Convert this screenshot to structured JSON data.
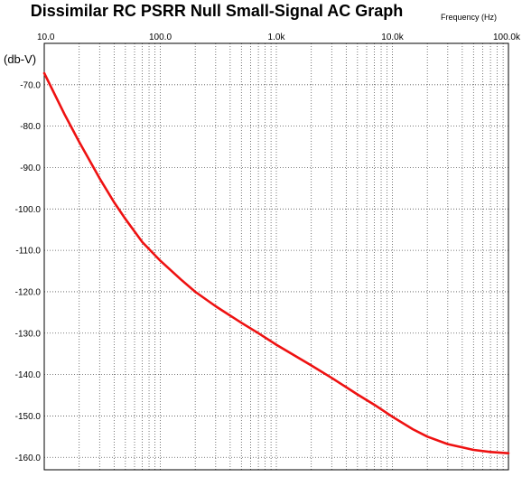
{
  "chart_data": {
    "type": "line",
    "title": "Dissimilar RC PSRR Null Small-Signal AC Graph",
    "xlabel": "Frequency   (Hz)",
    "ylabel": "(db-V)",
    "xscale": "log",
    "xlim": [
      10,
      100000
    ],
    "ylim": [
      -163,
      -60
    ],
    "grid": true,
    "xticks": [
      10,
      100,
      1000,
      10000,
      100000
    ],
    "xtick_labels": [
      "10.0",
      "100.0",
      "1.0k",
      "10.0k",
      "100.0k"
    ],
    "yticks": [
      -70,
      -80,
      -90,
      -100,
      -110,
      -120,
      -130,
      -140,
      -150,
      -160
    ],
    "ytick_labels": [
      "-70.0",
      "-80.0",
      "-90.0",
      "-100.0",
      "-110.0",
      "-120.0",
      "-130.0",
      "-140.0",
      "-150.0",
      "-160.0"
    ],
    "series": [
      {
        "color": "#ee1111",
        "x": [
          10,
          15,
          20,
          30,
          40,
          50,
          70,
          100,
          150,
          200,
          300,
          500,
          700,
          1000,
          2000,
          3000,
          5000,
          7000,
          10000,
          15000,
          20000,
          30000,
          50000,
          70000,
          100000
        ],
        "y": [
          -67.2,
          -77.2,
          -83.8,
          -92.6,
          -98.4,
          -102.4,
          -108.0,
          -112.5,
          -117.0,
          -120.0,
          -123.5,
          -127.5,
          -130.0,
          -132.8,
          -137.8,
          -140.8,
          -144.8,
          -147.3,
          -150.2,
          -153.2,
          -155.0,
          -156.8,
          -158.2,
          -158.7,
          -159.0
        ]
      }
    ]
  }
}
